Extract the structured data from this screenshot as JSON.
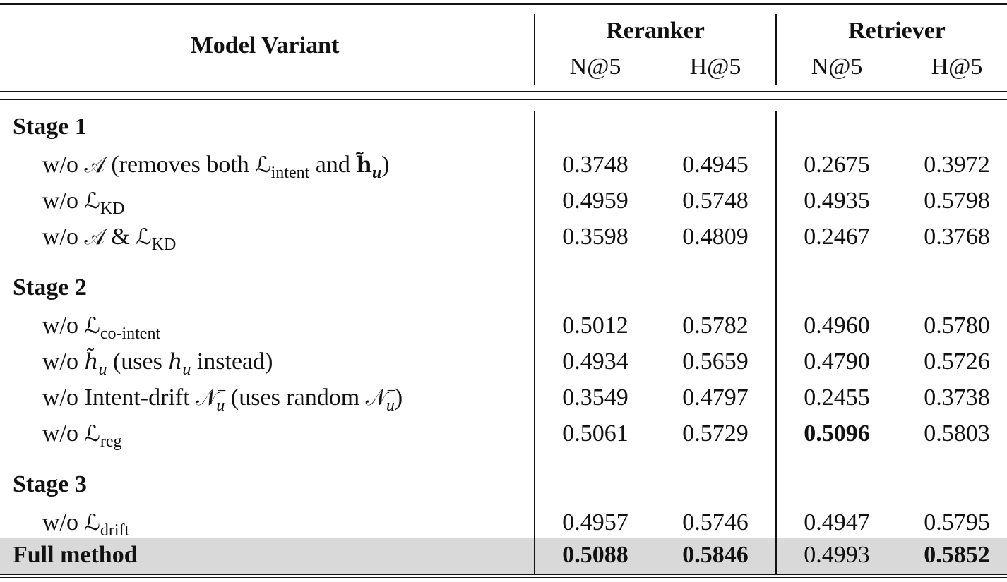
{
  "header": {
    "label": "Model Variant",
    "groups": [
      {
        "name": "Reranker",
        "metrics": [
          "N@5",
          "H@5"
        ]
      },
      {
        "name": "Retriever",
        "metrics": [
          "N@5",
          "H@5"
        ]
      }
    ]
  },
  "sections": [
    {
      "title": "Stage 1",
      "rows": [
        {
          "label": [
            "w/o ",
            {
              "math": "𝒜"
            },
            " (removes both ",
            {
              "math": "ℒ",
              "sub": "intent"
            },
            " and ",
            {
              "math": "h̃",
              "bold": true,
              "sub": "u",
              "sub_italic": true
            },
            ")"
          ],
          "values": [
            "0.3748",
            "0.4945",
            "0.2675",
            "0.3972"
          ],
          "bold": []
        },
        {
          "label": [
            "w/o ",
            {
              "math": "ℒ",
              "sub": "KD"
            }
          ],
          "values": [
            "0.4959",
            "0.5748",
            "0.4935",
            "0.5798"
          ],
          "bold": []
        },
        {
          "label": [
            "w/o ",
            {
              "math": "𝒜"
            },
            " & ",
            {
              "math": "ℒ",
              "sub": "KD"
            }
          ],
          "values": [
            "0.3598",
            "0.4809",
            "0.2467",
            "0.3768"
          ],
          "bold": []
        }
      ]
    },
    {
      "title": "Stage 2",
      "rows": [
        {
          "label": [
            "w/o ",
            {
              "math": "ℒ",
              "sub": "co-intent"
            }
          ],
          "values": [
            "0.5012",
            "0.5782",
            "0.4960",
            "0.5780"
          ],
          "bold": []
        },
        {
          "label": [
            "w/o ",
            {
              "math": "h̃",
              "italic": true,
              "sub": "u",
              "sub_italic": true
            },
            " (uses ",
            {
              "math": "h",
              "italic": true,
              "sub": "u",
              "sub_italic": true
            },
            " instead)"
          ],
          "values": [
            "0.4934",
            "0.5659",
            "0.4790",
            "0.5726"
          ],
          "bold": []
        },
        {
          "label": [
            "w/o Intent-drift ",
            {
              "math": "𝒩",
              "sub": "u",
              "sub_italic": true,
              "sup": "−"
            },
            " (uses random ",
            {
              "math": "𝒩",
              "sub": "u",
              "sub_italic": true,
              "sup": "−"
            },
            ")"
          ],
          "values": [
            "0.3549",
            "0.4797",
            "0.2455",
            "0.3738"
          ],
          "bold": []
        },
        {
          "label": [
            "w/o ",
            {
              "math": "ℒ",
              "sub": "reg"
            }
          ],
          "values": [
            "0.5061",
            "0.5729",
            "0.5096",
            "0.5803"
          ],
          "bold": [
            2
          ]
        }
      ]
    },
    {
      "title": "Stage 3",
      "rows": [
        {
          "label": [
            "w/o ",
            {
              "math": "ℒ",
              "sub": "drift"
            }
          ],
          "values": [
            "0.4957",
            "0.5746",
            "0.4947",
            "0.5795"
          ],
          "bold": []
        }
      ]
    }
  ],
  "full": {
    "label": "Full method",
    "values": [
      "0.5088",
      "0.5846",
      "0.4993",
      "0.5852"
    ],
    "bold": [
      0,
      1,
      3
    ]
  }
}
